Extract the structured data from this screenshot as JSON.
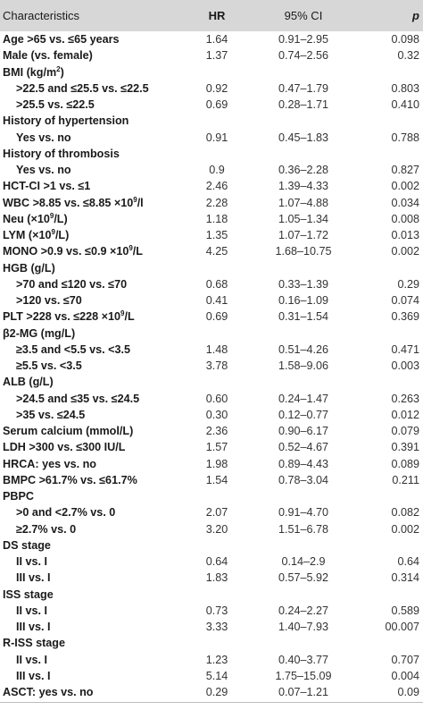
{
  "header": {
    "characteristics": "Characteristics",
    "hr": "HR",
    "ci": "95% CI",
    "p": "p"
  },
  "rows": [
    {
      "label": "Age >65 vs. ≤65 years",
      "hr": "1.64",
      "ci": "0.91–2.95",
      "p": "0.098",
      "style": "bold"
    },
    {
      "label": "Male (vs. female)",
      "hr": "1.37",
      "ci": "0.74–2.56",
      "p": "0.32",
      "style": "bold"
    },
    {
      "label": "BMI (kg/m",
      "sup": "2",
      "label_after": ")",
      "hr": "",
      "ci": "",
      "p": "",
      "style": "bold"
    },
    {
      "label": ">22.5 and ≤25.5 vs. ≤22.5",
      "hr": "0.92",
      "ci": "0.47–1.79",
      "p": "0.803",
      "style": "bold indent"
    },
    {
      "label": ">25.5 vs. ≤22.5",
      "hr": "0.69",
      "ci": "0.28–1.71",
      "p": "0.410",
      "style": "bold indent"
    },
    {
      "label": "History of hypertension",
      "hr": "",
      "ci": "",
      "p": "",
      "style": "bold"
    },
    {
      "label": "Yes vs. no",
      "hr": "0.91",
      "ci": "0.45–1.83",
      "p": "0.788",
      "style": "bold indent"
    },
    {
      "label": "History of thrombosis",
      "hr": "",
      "ci": "",
      "p": "",
      "style": "bold"
    },
    {
      "label": "Yes vs. no",
      "hr": "0.9",
      "ci": "0.36–2.28",
      "p": "0.827",
      "style": "bold indent"
    },
    {
      "label": "HCT-CI >1 vs. ≤1",
      "hr": "2.46",
      "ci": "1.39–4.33",
      "p": "0.002",
      "style": "bold"
    },
    {
      "label": "WBC >8.85 vs. ≤8.85 ×10",
      "sup": "9",
      "label_after": "/l",
      "hr": "2.28",
      "ci": "1.07–4.88",
      "p": "0.034",
      "style": "bold"
    },
    {
      "label": "Neu (×10",
      "sup": "9",
      "label_after": "/L)",
      "hr": "1.18",
      "ci": "1.05–1.34",
      "p": "0.008",
      "style": "bold"
    },
    {
      "label": "LYM (×10",
      "sup": "9",
      "label_after": "/L)",
      "hr": "1.35",
      "ci": "1.07–1.72",
      "p": "0.013",
      "style": "bold"
    },
    {
      "label": "MONO >0.9 vs. ≤0.9 ×10",
      "sup": "9",
      "label_after": "/L",
      "hr": "4.25",
      "ci": "1.68–10.75",
      "p": "0.002",
      "style": "bold"
    },
    {
      "label": "HGB (g/L)",
      "hr": "",
      "ci": "",
      "p": "",
      "style": "bold"
    },
    {
      "label": ">70 and ≤120 vs. ≤70",
      "hr": "0.68",
      "ci": "0.33–1.39",
      "p": "0.29",
      "style": "bold indent"
    },
    {
      "label": ">120 vs. ≤70",
      "hr": "0.41",
      "ci": "0.16–1.09",
      "p": "0.074",
      "style": "bold indent"
    },
    {
      "label": "PLT >228 vs. ≤228 ×10",
      "sup": "9",
      "label_after": "/L",
      "hr": "0.69",
      "ci": "0.31–1.54",
      "p": "0.369",
      "style": "bold"
    },
    {
      "label": "β2-MG (mg/L)",
      "hr": "",
      "ci": "",
      "p": "",
      "style": "bold"
    },
    {
      "label": "≥3.5 and <5.5 vs. <3.5",
      "hr": "1.48",
      "ci": "0.51–4.26",
      "p": "0.471",
      "style": "bold indent"
    },
    {
      "label": "≥5.5 vs. <3.5",
      "hr": "3.78",
      "ci": "1.58–9.06",
      "p": "0.003",
      "style": "bold indent"
    },
    {
      "label": "ALB (g/L)",
      "hr": "",
      "ci": "",
      "p": "",
      "style": "bold"
    },
    {
      "label": ">24.5 and ≤35 vs. ≤24.5",
      "hr": "0.60",
      "ci": "0.24–1.47",
      "p": "0.263",
      "style": "bold indent"
    },
    {
      "label": ">35 vs. ≤24.5",
      "hr": "0.30",
      "ci": "0.12–0.77",
      "p": "0.012",
      "style": "bold indent"
    },
    {
      "label": "Serum calcium (mmol/L)",
      "hr": "2.36",
      "ci": "0.90–6.17",
      "p": "0.079",
      "style": "bold"
    },
    {
      "label": "LDH >300 vs. ≤300 IU/L",
      "hr": "1.57",
      "ci": "0.52–4.67",
      "p": "0.391",
      "style": "bold"
    },
    {
      "label": "HRCA: yes vs. no",
      "hr": "1.98",
      "ci": "0.89–4.43",
      "p": "0.089",
      "style": "bold"
    },
    {
      "label": "BMPC >61.7% vs. ≤61.7%",
      "hr": "1.54",
      "ci": "0.78–3.04",
      "p": "0.211",
      "style": "bold"
    },
    {
      "label": "PBPC",
      "hr": "",
      "ci": "",
      "p": "",
      "style": "bold"
    },
    {
      "label": ">0 and <2.7% vs. 0",
      "hr": "2.07",
      "ci": "0.91–4.70",
      "p": "0.082",
      "style": "bold indent"
    },
    {
      "label": "≥2.7% vs. 0",
      "hr": "3.20",
      "ci": "1.51–6.78",
      "p": "0.002",
      "style": "bold indent"
    },
    {
      "label": "DS stage",
      "hr": "",
      "ci": "",
      "p": "",
      "style": "bold"
    },
    {
      "label": "II vs. I",
      "hr": "0.64",
      "ci": "0.14–2.9",
      "p": "0.64",
      "style": "bold indent"
    },
    {
      "label": "III vs. I",
      "hr": "1.83",
      "ci": "0.57–5.92",
      "p": "0.314",
      "style": "bold indent"
    },
    {
      "label": "ISS stage",
      "hr": "",
      "ci": "",
      "p": "",
      "style": "bold"
    },
    {
      "label": "II vs. I",
      "hr": "0.73",
      "ci": "0.24–2.27",
      "p": "0.589",
      "style": "bold indent"
    },
    {
      "label": "III vs. I",
      "hr": "3.33",
      "ci": "1.40–7.93",
      "p": "00.007",
      "style": "bold indent"
    },
    {
      "label": "R-ISS stage",
      "hr": "",
      "ci": "",
      "p": "",
      "style": "bold"
    },
    {
      "label": "II vs. I",
      "hr": "1.23",
      "ci": "0.40–3.77",
      "p": "0.707",
      "style": "bold indent"
    },
    {
      "label": "III vs. I",
      "hr": "5.14",
      "ci": "1.75–15.09",
      "p": "0.004",
      "style": "bold indent"
    },
    {
      "label": "ASCT: yes vs. no",
      "hr": "0.29",
      "ci": "0.07–1.21",
      "p": "0.09",
      "style": "bold"
    }
  ],
  "colors": {
    "header_bg": "#d7d7d7",
    "text": "#1a1a1a",
    "rule": "#bdbdbd"
  }
}
